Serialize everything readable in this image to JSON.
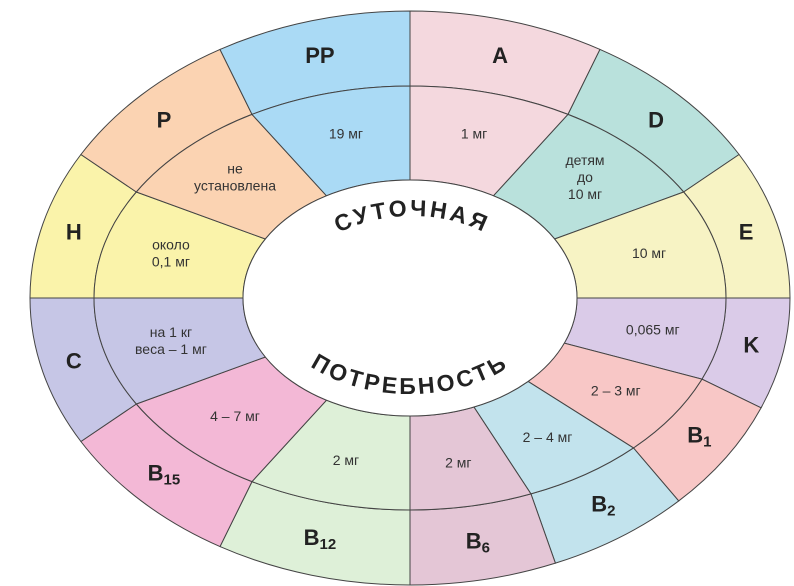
{
  "center": {
    "top": "СУТОЧНАЯ",
    "bottom": "ПОТРЕБНОСТЬ"
  },
  "segments": [
    {
      "name": "A",
      "dose": [
        "1 мг"
      ],
      "color": "#f4d8de"
    },
    {
      "name": "D",
      "dose": [
        "детям",
        "до",
        "10 мг"
      ],
      "color": "#b9e1dc"
    },
    {
      "name": "E",
      "dose": [
        "10 мг"
      ],
      "color": "#f7f3c4"
    },
    {
      "name": "K",
      "dose": [
        "0,065 мг"
      ],
      "color": "#dacbe8"
    },
    {
      "name": "B",
      "sub": "1",
      "dose": [
        "2 – 3 мг"
      ],
      "color": "#f8c7c6"
    },
    {
      "name": "B",
      "sub": "2",
      "dose": [
        "2 – 4 мг"
      ],
      "color": "#c2e3ed"
    },
    {
      "name": "B",
      "sub": "6",
      "dose": [
        "2 мг"
      ],
      "color": "#e4c6d6"
    },
    {
      "name": "B",
      "sub": "12",
      "dose": [
        "2 мг"
      ],
      "color": "#def0d8"
    },
    {
      "name": "B",
      "sub": "15",
      "dose": [
        "4 – 7 мг"
      ],
      "color": "#f3b8d6"
    },
    {
      "name": "C",
      "dose": [
        "на 1 кг",
        "веса – 1 мг"
      ],
      "color": "#c6c6e6"
    },
    {
      "name": "H",
      "dose": [
        "около",
        "0,1 мг"
      ],
      "color": "#faf3aa"
    },
    {
      "name": "P",
      "dose": [
        "не",
        "установлена"
      ],
      "color": "#fbd3b2"
    },
    {
      "name": "PP",
      "dose": [
        "19 мг"
      ],
      "color": "#aadaf5"
    }
  ]
}
